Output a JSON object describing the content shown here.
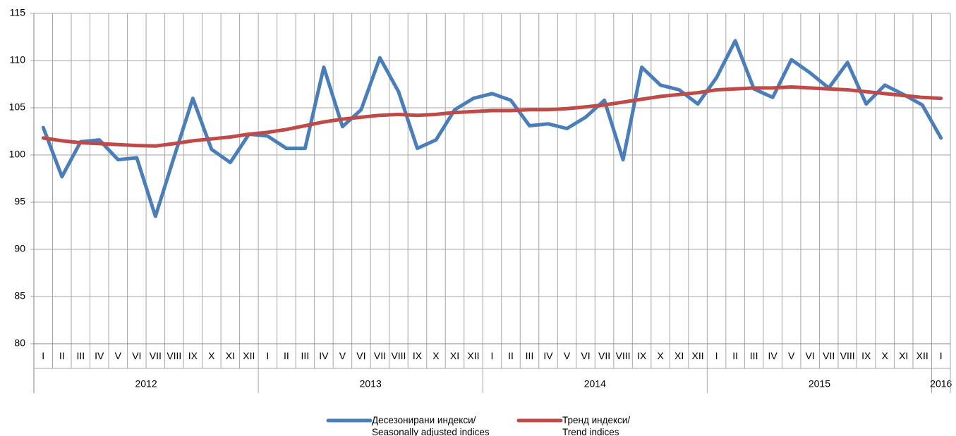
{
  "chart_data": {
    "type": "line",
    "groups": [
      {
        "label": "2012",
        "months": [
          "I",
          "II",
          "III",
          "IV",
          "V",
          "VI",
          "VII",
          "VIII",
          "IX",
          "X",
          "XI",
          "XII"
        ]
      },
      {
        "label": "2013",
        "months": [
          "I",
          "II",
          "III",
          "IV",
          "V",
          "VI",
          "VII",
          "VIII",
          "IX",
          "X",
          "XI",
          "XII"
        ]
      },
      {
        "label": "2014",
        "months": [
          "I",
          "II",
          "III",
          "IV",
          "V",
          "VI",
          "VII",
          "VIII",
          "IX",
          "X",
          "XI",
          "XII"
        ]
      },
      {
        "label": "2015",
        "months": [
          "I",
          "II",
          "III",
          "IV",
          "V",
          "VI",
          "VII",
          "VIII",
          "IX",
          "X",
          "XI",
          "XII"
        ]
      },
      {
        "label": "2016",
        "months": [
          "I"
        ]
      }
    ],
    "series": [
      {
        "name": "Десезонирани индекси/\nSeasonally adjusted indices",
        "color": "#4a7ebb",
        "values": [
          102.9,
          97.7,
          101.4,
          101.6,
          99.5,
          99.7,
          93.5,
          99.8,
          106.0,
          100.6,
          99.2,
          102.2,
          102.0,
          100.7,
          100.7,
          109.3,
          103.0,
          104.8,
          110.3,
          106.7,
          100.7,
          101.6,
          104.8,
          106.0,
          106.5,
          105.8,
          103.1,
          103.3,
          102.8,
          104.0,
          105.8,
          99.5,
          109.3,
          107.4,
          106.9,
          105.4,
          108.2,
          112.1,
          107.0,
          106.1,
          110.1,
          108.7,
          107.1,
          109.8,
          105.4,
          107.4,
          106.4,
          105.3,
          101.8
        ]
      },
      {
        "name": "Тренд индекси/\nTrend indices",
        "color": "#be4b48",
        "values": [
          101.8,
          101.5,
          101.3,
          101.2,
          101.1,
          101.0,
          100.95,
          101.2,
          101.5,
          101.7,
          101.9,
          102.2,
          102.4,
          102.7,
          103.1,
          103.5,
          103.8,
          104.0,
          104.2,
          104.3,
          104.2,
          104.3,
          104.5,
          104.6,
          104.7,
          104.7,
          104.8,
          104.8,
          104.9,
          105.1,
          105.3,
          105.6,
          105.9,
          106.2,
          106.4,
          106.6,
          106.9,
          107.0,
          107.1,
          107.1,
          107.2,
          107.1,
          107.0,
          106.9,
          106.7,
          106.5,
          106.3,
          106.1,
          106.0
        ]
      }
    ],
    "ylim": [
      80,
      115
    ],
    "yticks": [
      80,
      85,
      90,
      95,
      100,
      105,
      110,
      115
    ],
    "grid": true
  }
}
